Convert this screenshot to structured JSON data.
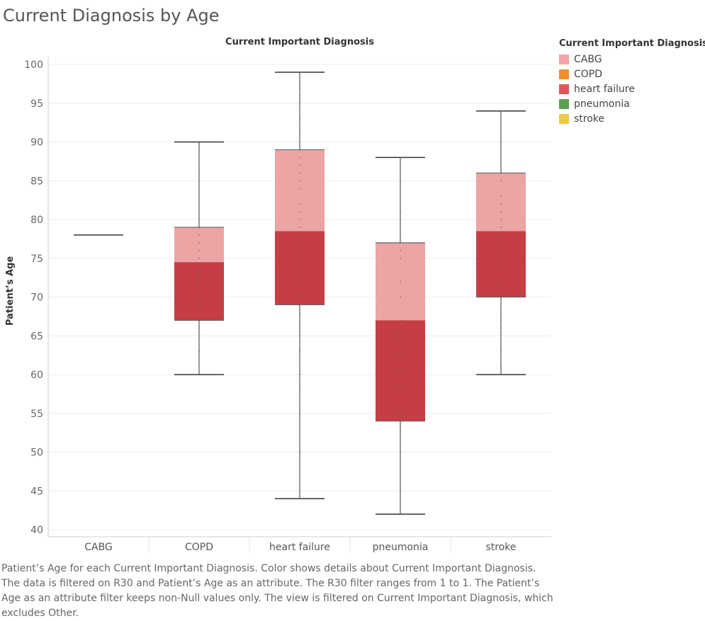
{
  "page": {
    "title": "Current Diagnosis by Age",
    "column_header": "Current Important Diagnosis",
    "caption": "Patient’s Age for each Current Important Diagnosis.  Color shows details about Current Important Diagnosis.  The data is filtered on R30 and Patient’s Age as an attribute. The R30 filter ranges from 1 to 1. The Patient’s Age as an attribute filter keeps non-Null values only. The view is filtered on Current Important Diagnosis, which excludes Other."
  },
  "legend": {
    "title": "Current Important Diagnosis",
    "items": [
      {
        "label": "CABG",
        "color": "#f4a3a8"
      },
      {
        "label": "COPD",
        "color": "#f28e2b"
      },
      {
        "label": "heart failure",
        "color": "#e15759"
      },
      {
        "label": "pneumonia",
        "color": "#59a14f"
      },
      {
        "label": "stroke",
        "color": "#edc948"
      }
    ]
  },
  "chart_data": {
    "type": "boxplot",
    "title": "Current Diagnosis by Age",
    "xlabel": "Current Important Diagnosis",
    "ylabel": "Patient’s Age",
    "ylim": [
      40,
      100
    ],
    "yticks": [
      40,
      45,
      50,
      55,
      60,
      65,
      70,
      75,
      80,
      85,
      90,
      95,
      100
    ],
    "grid": true,
    "colors": {
      "upper_box": "#eca4a5",
      "lower_box": "#c43e44",
      "whisker": "#333333"
    },
    "categories": [
      "CABG",
      "COPD",
      "heart failure",
      "pneumonia",
      "stroke"
    ],
    "boxes": [
      {
        "category": "CABG",
        "min": 78,
        "q1": 78,
        "median": 78,
        "q3": 78,
        "max": 78
      },
      {
        "category": "COPD",
        "min": 60,
        "q1": 67,
        "median": 74.5,
        "q3": 79,
        "max": 90
      },
      {
        "category": "heart failure",
        "min": 44,
        "q1": 69,
        "median": 78.5,
        "q3": 89,
        "max": 99
      },
      {
        "category": "pneumonia",
        "min": 42,
        "q1": 54,
        "median": 67,
        "q3": 77,
        "max": 88
      },
      {
        "category": "stroke",
        "min": 60,
        "q1": 70,
        "median": 78.5,
        "q3": 86,
        "max": 94
      }
    ],
    "points": {
      "CABG": [
        78
      ],
      "COPD": [
        60,
        63,
        66,
        67,
        69,
        70,
        72,
        73,
        74,
        75,
        76,
        77,
        78,
        79,
        86,
        89,
        90
      ],
      "heart failure": [
        44,
        50,
        55,
        58,
        60,
        63,
        65,
        66,
        68,
        69,
        70,
        72,
        73,
        74,
        75,
        76,
        77,
        78,
        79,
        80,
        81,
        82,
        84,
        85,
        86,
        87,
        88,
        89,
        91,
        93,
        95,
        96,
        97,
        99
      ],
      "pneumonia": [
        42,
        45,
        50,
        53,
        54,
        55,
        58,
        60,
        62,
        64,
        66,
        67,
        70,
        72,
        75,
        76,
        77,
        78,
        81,
        88
      ],
      "stroke": [
        60,
        61,
        63,
        66,
        67,
        68,
        70,
        72,
        74,
        75,
        76,
        77,
        78,
        79,
        80,
        81,
        82,
        83,
        85,
        86,
        88,
        90,
        94
      ]
    }
  }
}
